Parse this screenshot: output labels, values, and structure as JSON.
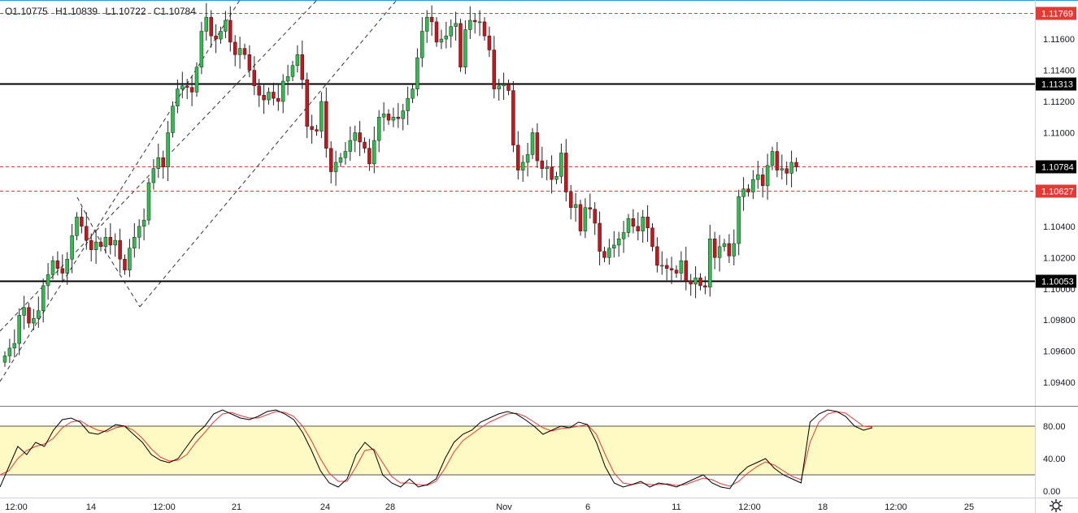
{
  "ohlc": {
    "open": "O1.10775",
    "high": "H1.10839",
    "low": "L1.10722",
    "close": "C1.10784"
  },
  "chart_data": {
    "type": "candlestick",
    "price_axis": {
      "min": 1.0925,
      "max": 1.1185,
      "ticks": [
        "1.11600",
        "1.11400",
        "1.11200",
        "1.11000",
        "1.10400",
        "1.10200",
        "1.10000",
        "1.09800",
        "1.09600",
        "1.09400"
      ]
    },
    "time_axis_labels": [
      "12:00",
      "14",
      "12:00",
      "21",
      "24",
      "28",
      "Nov",
      "6",
      "11",
      "12:00",
      "18",
      "12:00",
      "25"
    ],
    "price_labels": [
      {
        "text": "1.11769",
        "price": 1.11769,
        "style": "red-dashed"
      },
      {
        "text": "1.11313",
        "price": 1.11313,
        "style": "black-solid"
      },
      {
        "text": "1.10784",
        "price": 1.10784,
        "style": "red-dashed-current"
      },
      {
        "text": "1.10627",
        "price": 1.10627,
        "style": "red-dashed"
      },
      {
        "text": "1.10053",
        "price": 1.10053,
        "style": "black-solid"
      }
    ],
    "colors": {
      "up": "#26a69a",
      "up_fill": "#2ebd4e",
      "down": "#c8141a",
      "red_line": "#e53935",
      "black_line": "#000000",
      "band": "#fff9c4",
      "stoch_k": "#000000",
      "stoch_d": "#e53935"
    },
    "candle_closes": [
      1.0957,
      1.0962,
      1.0965,
      1.0983,
      1.0988,
      1.0978,
      1.0981,
      1.0986,
      1.1002,
      1.1009,
      1.1018,
      1.1013,
      1.101,
      1.1019,
      1.1034,
      1.1046,
      1.104,
      1.1031,
      1.1025,
      1.103,
      1.1027,
      1.1033,
      1.1028,
      1.1031,
      1.1019,
      1.1012,
      1.1026,
      1.1033,
      1.104,
      1.1044,
      1.1068,
      1.1077,
      1.1084,
      1.1078,
      1.11,
      1.1117,
      1.1128,
      1.113,
      1.1129,
      1.1126,
      1.1142,
      1.1165,
      1.1174,
      1.1162,
      1.116,
      1.1165,
      1.1172,
      1.1158,
      1.115,
      1.1154,
      1.115,
      1.114,
      1.113,
      1.1124,
      1.1121,
      1.1126,
      1.1122,
      1.112,
      1.1133,
      1.1136,
      1.1143,
      1.115,
      1.1134,
      1.1104,
      1.1102,
      1.1101,
      1.112,
      1.109,
      1.1075,
      1.1081,
      1.1084,
      1.1088,
      1.1095,
      1.11,
      1.1094,
      1.109,
      1.108,
      1.1095,
      1.111,
      1.1112,
      1.1108,
      1.111,
      1.1109,
      1.1114,
      1.1122,
      1.1128,
      1.1148,
      1.1165,
      1.1174,
      1.1171,
      1.1158,
      1.116,
      1.1162,
      1.1168,
      1.117,
      1.1142,
      1.1166,
      1.1172,
      1.1171,
      1.1171,
      1.1162,
      1.1153,
      1.1128,
      1.113,
      1.1131,
      1.1127,
      1.1092,
      1.1076,
      1.1081,
      1.1086,
      1.11,
      1.1082,
      1.1077,
      1.1078,
      1.107,
      1.1072,
      1.1087,
      1.1062,
      1.1052,
      1.1054,
      1.1037,
      1.1052,
      1.1051,
      1.1042,
      1.1024,
      1.102,
      1.1026,
      1.1028,
      1.1032,
      1.1036,
      1.1045,
      1.104,
      1.1037,
      1.1046,
      1.1039,
      1.1027,
      1.1015,
      1.1015,
      1.1013,
      1.1012,
      1.101,
      1.1018,
      1.1005,
      1.1003,
      1.1007,
      1.1002,
      1.1001,
      1.1032,
      1.102,
      1.1027,
      1.1029,
      1.1021,
      1.1029,
      1.1059,
      1.1064,
      1.1062,
      1.107,
      1.1073,
      1.1066,
      1.1079,
      1.1088,
      1.1076,
      1.1077,
      1.1074,
      1.1081,
      1.1078
    ]
  },
  "stochastic": {
    "ticks": [
      "80.00",
      "40.00",
      "0.00"
    ],
    "band": [
      20,
      80
    ],
    "k": [
      5,
      30,
      55,
      45,
      60,
      55,
      75,
      88,
      90,
      85,
      72,
      70,
      75,
      82,
      80,
      70,
      60,
      45,
      38,
      35,
      40,
      55,
      70,
      80,
      95,
      100,
      95,
      90,
      88,
      92,
      98,
      100,
      95,
      88,
      72,
      50,
      25,
      10,
      5,
      15,
      45,
      60,
      50,
      20,
      10,
      5,
      15,
      5,
      8,
      15,
      40,
      60,
      70,
      75,
      85,
      90,
      95,
      98,
      95,
      88,
      80,
      70,
      75,
      80,
      78,
      85,
      82,
      60,
      30,
      10,
      5,
      8,
      12,
      5,
      10,
      8,
      5,
      10,
      15,
      20,
      10,
      5,
      3,
      20,
      30,
      35,
      40,
      28,
      20,
      15,
      10,
      85,
      95,
      100,
      98,
      92,
      80,
      75,
      78
    ],
    "d": [
      20,
      25,
      40,
      50,
      55,
      58,
      65,
      78,
      85,
      87,
      80,
      75,
      73,
      78,
      80,
      75,
      65,
      52,
      42,
      37,
      38,
      45,
      60,
      72,
      85,
      95,
      97,
      93,
      90,
      90,
      94,
      98,
      97,
      92,
      80,
      62,
      40,
      22,
      12,
      12,
      30,
      50,
      52,
      35,
      18,
      10,
      10,
      8,
      7,
      12,
      28,
      48,
      62,
      70,
      78,
      85,
      90,
      95,
      96,
      92,
      85,
      78,
      74,
      77,
      78,
      80,
      82,
      70,
      45,
      22,
      10,
      8,
      10,
      8,
      8,
      9,
      7,
      8,
      12,
      16,
      14,
      9,
      6,
      12,
      22,
      30,
      36,
      32,
      25,
      18,
      14,
      60,
      85,
      95,
      98,
      96,
      88,
      80,
      79
    ]
  }
}
